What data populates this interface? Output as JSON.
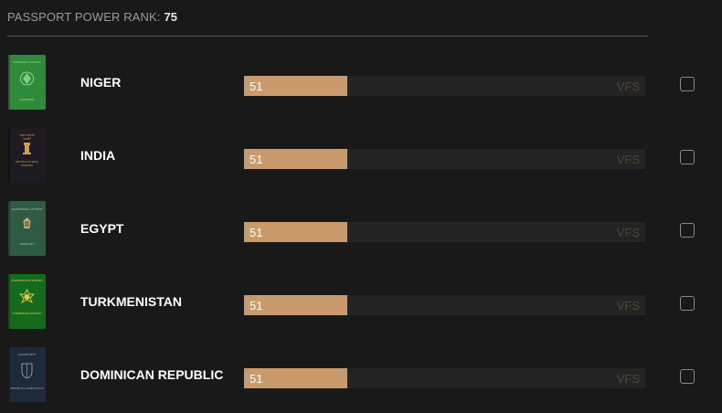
{
  "header": {
    "rank_label": "PASSPORT POWER RANK:",
    "rank_value": "75"
  },
  "bar_max": 199,
  "rows": [
    {
      "country": "NIGER",
      "value": "51",
      "tag": "VFS",
      "cover_color": "#2e8b3a",
      "cover_text": [
        "REPUBLIQUE DU NIGER",
        "PASSEPORT"
      ],
      "selected": false
    },
    {
      "country": "INDIA",
      "value": "51",
      "tag": "VFS",
      "cover_color": "#1e1b22",
      "cover_text": [
        "भारत गणराज्य",
        "पासपोर्ट",
        "REPUBLIC OF INDIA",
        "PASSPORT"
      ],
      "selected": false
    },
    {
      "country": "EGYPT",
      "value": "51",
      "tag": "VFS",
      "cover_color": "#2f5a44",
      "cover_text": [
        "ARAB REPUBLIC OF EGYPT",
        "PASSPORT"
      ],
      "selected": false
    },
    {
      "country": "TURKMENISTAN",
      "value": "51",
      "tag": "VFS",
      "cover_color": "#146b1e",
      "cover_text": [
        "TÜRKMENISTANYŇ PASPORTY",
        "TURKMENISTAN PASSPORT"
      ],
      "selected": false
    },
    {
      "country": "DOMINICAN REPUBLIC",
      "value": "51",
      "tag": "VFS",
      "cover_color": "#1d2a3c",
      "cover_text": [
        "PASAPORTE",
        "REPÚBLICA DOMINICANA"
      ],
      "selected": false
    }
  ],
  "colors": {
    "background": "#191919",
    "bar_fill": "#c99b6c",
    "bar_track": "#242424",
    "tag_text": "#4e4639"
  }
}
